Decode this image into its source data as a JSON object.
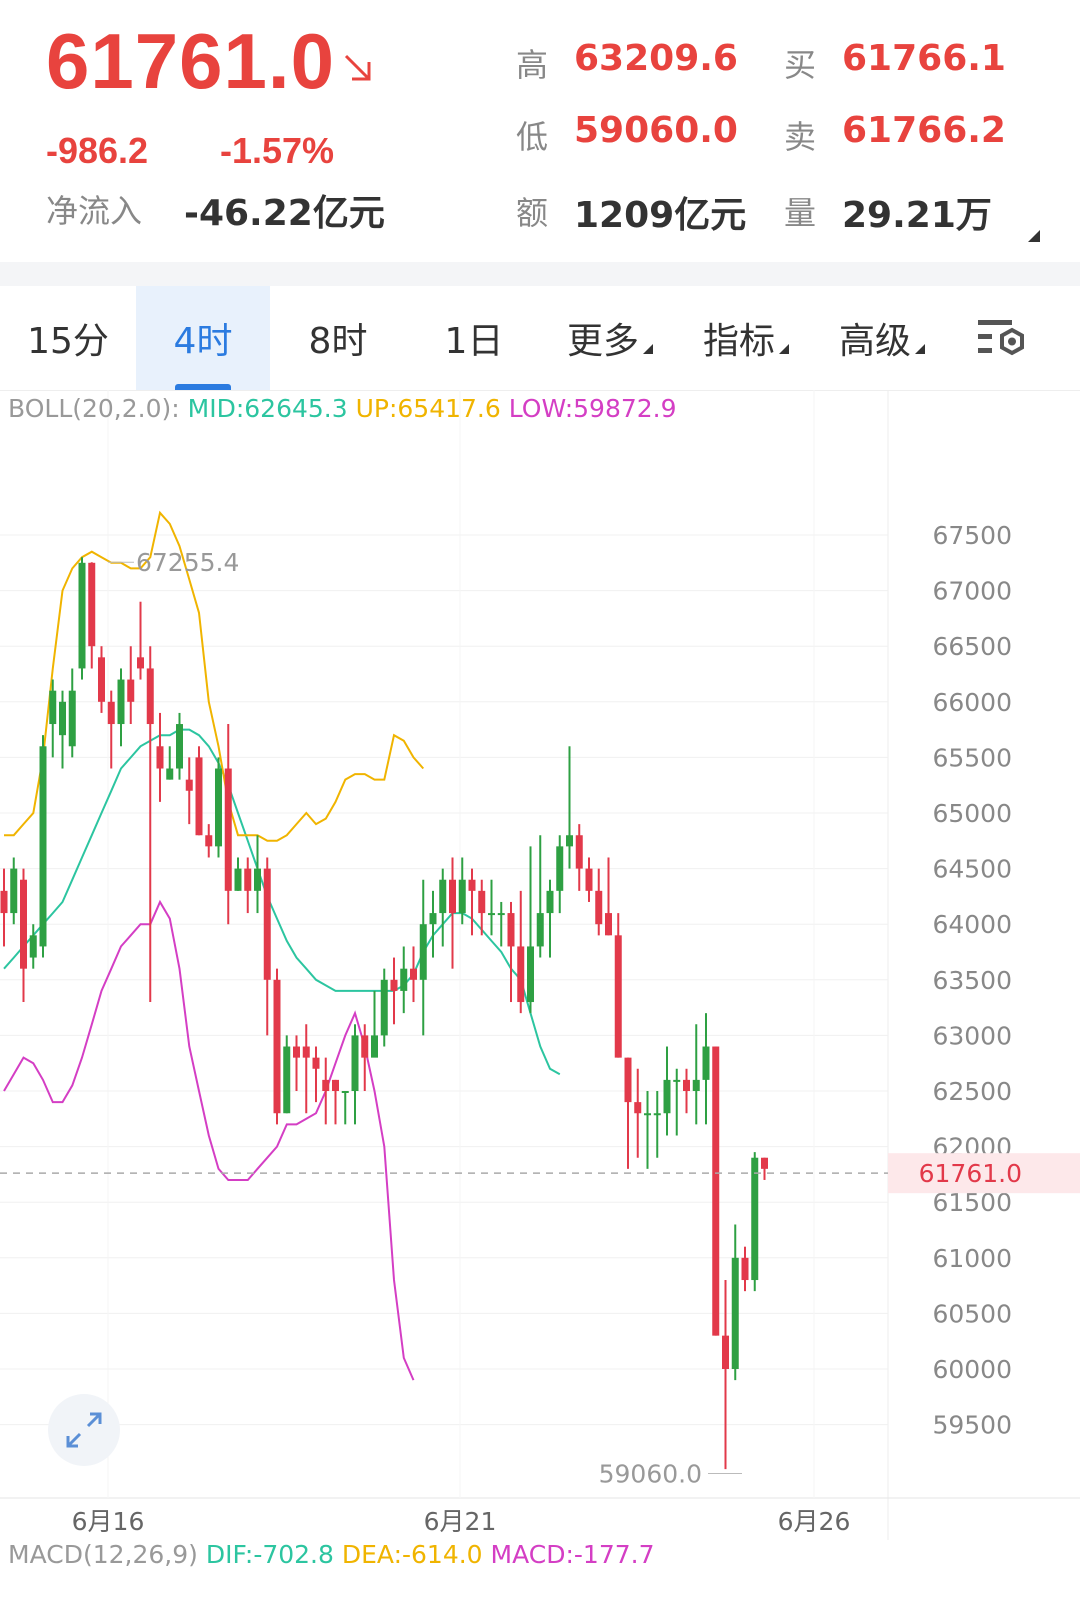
{
  "quote": {
    "price": "61761.0",
    "change": "-986.2",
    "change_pct": "-1.57%",
    "net_inflow_label": "净流入",
    "net_inflow_value": "-46.22亿元",
    "high_label": "高",
    "high_value": "63209.6",
    "low_label": "低",
    "low_value": "59060.0",
    "amount_label": "额",
    "amount_value": "1209亿元",
    "buy_label": "买",
    "buy_value": "61766.1",
    "sell_label": "卖",
    "sell_value": "61766.2",
    "volume_label": "量",
    "volume_value": "29.21万"
  },
  "tabs": {
    "t15": "15分",
    "t4h": "4时",
    "t8h": "8时",
    "t1d": "1日",
    "more": "更多",
    "indicator": "指标",
    "advanced": "高级"
  },
  "indicators": {
    "boll_name": "BOLL(20,2.0):",
    "boll_mid": "MID:62645.3",
    "boll_up": "UP:65417.6",
    "boll_low": "LOW:59872.9",
    "macd_name": "MACD(12,26,9)",
    "macd_dif": "DIF:-702.8",
    "macd_dea": "DEA:-614.0",
    "macd_val": "MACD:-177.7"
  },
  "colors": {
    "up": "#2ea043",
    "down": "#e2394a",
    "mid": "#2cc5a0",
    "upper": "#f0b400",
    "lower": "#d43ec4",
    "blue": "#2b7be0"
  },
  "chart_data": {
    "type": "candlestick",
    "y_ticks": [
      "67500",
      "67000",
      "66500",
      "66000",
      "65500",
      "65000",
      "64500",
      "64000",
      "63500",
      "63000",
      "62500",
      "62000",
      "61500",
      "61000",
      "60500",
      "60000",
      "59500"
    ],
    "x_ticks": [
      "6月16",
      "6月21",
      "6月26"
    ],
    "ylim": [
      59000,
      68000
    ],
    "current_price_label": "61761.0",
    "max_label": "67255.4",
    "min_label": "59060.0",
    "candles": [
      [
        64300,
        64100,
        64500,
        63800
      ],
      [
        64100,
        64500,
        64600,
        64000
      ],
      [
        64400,
        63600,
        64500,
        63300
      ],
      [
        63700,
        63900,
        64000,
        63600
      ],
      [
        63800,
        65600,
        65700,
        63700
      ],
      [
        65800,
        66100,
        66200,
        65500
      ],
      [
        65700,
        66000,
        66100,
        65400
      ],
      [
        65600,
        66100,
        66300,
        65500
      ],
      [
        66300,
        67250,
        67300,
        66200
      ],
      [
        67250,
        66500,
        67255,
        66300
      ],
      [
        66400,
        66000,
        66500,
        65900
      ],
      [
        66000,
        65800,
        66100,
        65400
      ],
      [
        65800,
        66200,
        66300,
        65600
      ],
      [
        66200,
        66000,
        66500,
        65800
      ],
      [
        66400,
        66300,
        66900,
        66200
      ],
      [
        66300,
        65800,
        66500,
        63300
      ],
      [
        65600,
        65400,
        65900,
        65100
      ],
      [
        65300,
        65400,
        65600,
        65300
      ],
      [
        65400,
        65800,
        65900,
        65300
      ],
      [
        65300,
        65200,
        65500,
        64900
      ],
      [
        65500,
        64800,
        65600,
        64800
      ],
      [
        64800,
        64700,
        64900,
        64600
      ],
      [
        64700,
        65400,
        65500,
        64600
      ],
      [
        65400,
        64300,
        65800,
        64000
      ],
      [
        64300,
        64500,
        64600,
        64300
      ],
      [
        64500,
        64300,
        64600,
        64100
      ],
      [
        64300,
        64500,
        64800,
        64100
      ],
      [
        64500,
        63500,
        64600,
        63000
      ],
      [
        63500,
        62300,
        63600,
        62200
      ],
      [
        62300,
        62900,
        63000,
        62300
      ],
      [
        62900,
        62800,
        63000,
        62500
      ],
      [
        62900,
        62800,
        63100,
        62300
      ],
      [
        62800,
        62700,
        62900,
        62400
      ],
      [
        62600,
        62500,
        62800,
        62200
      ],
      [
        62600,
        62500,
        62600,
        62200
      ],
      [
        62500,
        62500,
        62500,
        62200
      ],
      [
        62500,
        63000,
        63100,
        62200
      ],
      [
        63000,
        62800,
        63100,
        62500
      ],
      [
        62800,
        63000,
        63400,
        62900
      ],
      [
        63000,
        63500,
        63600,
        62900
      ],
      [
        63500,
        63400,
        63700,
        63100
      ],
      [
        63400,
        63600,
        63800,
        63200
      ],
      [
        63600,
        63500,
        63800,
        63300
      ],
      [
        63500,
        64000,
        64400,
        63000
      ],
      [
        64000,
        64100,
        64300,
        63700
      ],
      [
        64100,
        64400,
        64500,
        63800
      ],
      [
        64400,
        64100,
        64600,
        63600
      ],
      [
        64100,
        64400,
        64600,
        64000
      ],
      [
        64400,
        64300,
        64500,
        63900
      ],
      [
        64300,
        64100,
        64400,
        63900
      ],
      [
        64100,
        64100,
        64400,
        63900
      ],
      [
        64100,
        64100,
        64200,
        63800
      ],
      [
        64100,
        63800,
        64200,
        63300
      ],
      [
        63800,
        63300,
        64300,
        63200
      ],
      [
        63300,
        63800,
        64700,
        63200
      ],
      [
        63800,
        64100,
        64800,
        63700
      ],
      [
        64100,
        64300,
        64400,
        63700
      ],
      [
        64300,
        64700,
        64800,
        64100
      ],
      [
        64700,
        64800,
        65600,
        64500
      ],
      [
        64800,
        64500,
        64900,
        64300
      ],
      [
        64500,
        64300,
        64600,
        64200
      ],
      [
        64300,
        64000,
        64500,
        63900
      ],
      [
        64100,
        63900,
        64600,
        63900
      ],
      [
        63900,
        62800,
        64100,
        62800
      ],
      [
        62800,
        62400,
        62800,
        61800
      ],
      [
        62400,
        62300,
        62700,
        61900
      ],
      [
        62300,
        62300,
        62500,
        61800
      ],
      [
        62300,
        62300,
        62500,
        61900
      ],
      [
        62300,
        62600,
        62900,
        62100
      ],
      [
        62600,
        62600,
        62700,
        62100
      ],
      [
        62600,
        62500,
        62700,
        62300
      ],
      [
        62500,
        62600,
        63100,
        62200
      ],
      [
        62600,
        62900,
        63200,
        62200
      ],
      [
        62900,
        60300,
        62900,
        60300
      ],
      [
        60300,
        60000,
        60800,
        59100
      ],
      [
        60000,
        61000,
        61300,
        59900
      ],
      [
        61000,
        60800,
        61100,
        60700
      ],
      [
        60800,
        61900,
        61950,
        60700
      ],
      [
        61900,
        61800,
        61900,
        61700
      ]
    ],
    "mid": [
      63600,
      63700,
      63800,
      63900,
      64000,
      64100,
      64200,
      64400,
      64600,
      64800,
      65000,
      65200,
      65400,
      65500,
      65600,
      65650,
      65700,
      65700,
      65750,
      65750,
      65700,
      65600,
      65450,
      65250,
      65000,
      64750,
      64500,
      64250,
      64050,
      63850,
      63700,
      63600,
      63500,
      63450,
      63400,
      63400,
      63400,
      63400,
      63400,
      63400,
      63400,
      63450,
      63550,
      63750,
      63900,
      64000,
      64100,
      64100,
      64050,
      63950,
      63850,
      63750,
      63600,
      63500,
      63200,
      62900,
      62700,
      62650
    ],
    "up": [
      64800,
      64800,
      64900,
      65000,
      65500,
      66300,
      67000,
      67200,
      67300,
      67350,
      67300,
      67250,
      67250,
      67200,
      67200,
      67300,
      67700,
      67600,
      67400,
      67100,
      66800,
      66000,
      65600,
      65100,
      64800,
      64800,
      64800,
      64750,
      64750,
      64800,
      64900,
      65000,
      64900,
      64950,
      65100,
      65300,
      65350,
      65350,
      65300,
      65300,
      65700,
      65650,
      65500,
      65400
    ],
    "low": [
      62500,
      62650,
      62800,
      62750,
      62600,
      62400,
      62400,
      62550,
      62800,
      63100,
      63400,
      63600,
      63800,
      63900,
      64000,
      64000,
      64200,
      64050,
      63600,
      62900,
      62500,
      62100,
      61800,
      61700,
      61700,
      61700,
      61800,
      61900,
      62000,
      62200,
      62200,
      62250,
      62300,
      62500,
      62750,
      63000,
      63200,
      62900,
      62500,
      62000,
      60800,
      60100,
      59900
    ]
  }
}
